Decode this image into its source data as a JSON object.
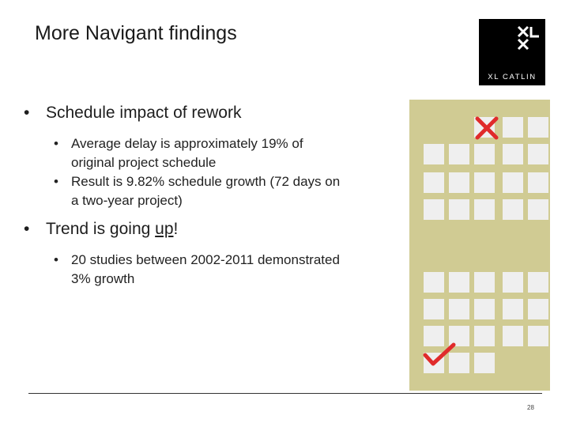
{
  "title": "More Navigant findings",
  "logo": {
    "text": "XL CATLIN"
  },
  "bullets": [
    {
      "text": "Schedule impact of rework",
      "sub": [
        {
          "lines": [
            "Average delay is approximately 19% of",
            "original project schedule"
          ]
        },
        {
          "lines": [
            "Result is 9.82% schedule growth (72 days on",
            "a two-year project)"
          ]
        }
      ]
    },
    {
      "text_before": "Trend is going ",
      "text_underlined": "up",
      "text_after": "!",
      "sub": [
        {
          "lines": [
            "20 studies between 2002-2011 demonstrated",
            "3% growth"
          ]
        }
      ]
    }
  ],
  "page_number": "28",
  "colors": {
    "calendar_bg": "#d0cb93",
    "calendar_cell": "#efefef",
    "mark_red": "#e02b2b",
    "logo_bg": "#000000"
  },
  "icons": {
    "start_mark": "red-x-icon",
    "end_mark": "red-check-icon"
  }
}
